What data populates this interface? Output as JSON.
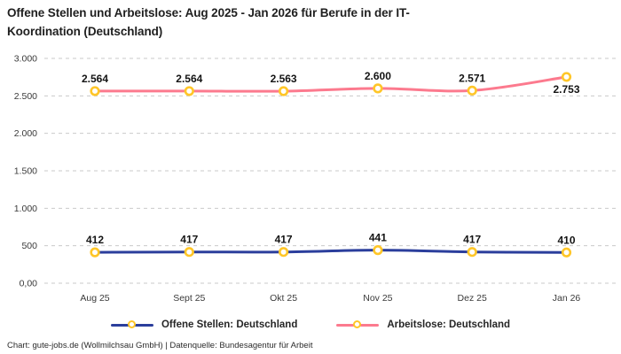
{
  "title": {
    "line1": "Offene Stellen und Arbeitslose: Aug 2025 - Jan 2026 für Berufe in der IT-",
    "line2": "Koordination (Deutschland)",
    "full": "Offene Stellen und Arbeitslose: Aug 2025 - Jan 2026 für Berufe in der IT-Koordination (Deutschland)"
  },
  "footer": "Chart: gute-jobs.de (Wollmilchsau GmbH) | Datenquelle: Bundesagentur für Arbeit",
  "legend": [
    {
      "label": "Offene Stellen: Deutschland",
      "color": "#2b3e9c"
    },
    {
      "label": "Arbeitslose: Deutschland",
      "color": "#fc7a8e"
    }
  ],
  "colors": {
    "marker_ring": "#ffc628",
    "marker_fill": "#ffffff",
    "gridline": "#c9c9c9",
    "tick_text": "#3a3a3a",
    "value_label": "#141414"
  },
  "chart_data": {
    "type": "line",
    "title": "Offene Stellen und Arbeitslose: Aug 2025 - Jan 2026 für Berufe in der IT-Koordination (Deutschland)",
    "categories": [
      "Aug 25",
      "Sept 25",
      "Okt 25",
      "Nov 25",
      "Dez 25",
      "Jan 26"
    ],
    "series": [
      {
        "name": "Offene Stellen: Deutschland",
        "color": "#2b3e9c",
        "values": [
          412,
          417,
          417,
          441,
          417,
          410
        ],
        "labels": [
          "412",
          "417",
          "417",
          "441",
          "417",
          "410"
        ],
        "label_placement": [
          "above",
          "above",
          "above",
          "above",
          "above",
          "above"
        ]
      },
      {
        "name": "Arbeitslose: Deutschland",
        "color": "#fc7a8e",
        "values": [
          2564,
          2564,
          2563,
          2600,
          2571,
          2753
        ],
        "labels": [
          "2.564",
          "2.564",
          "2.563",
          "2.600",
          "2.571",
          "2.753"
        ],
        "label_placement": [
          "above",
          "above",
          "above",
          "above",
          "above",
          "below"
        ]
      }
    ],
    "y_ticks": [
      {
        "value": 3000,
        "label": "3.000"
      },
      {
        "value": 2500,
        "label": "2.500"
      },
      {
        "value": 2000,
        "label": "2.000"
      },
      {
        "value": 1500,
        "label": "1.500"
      },
      {
        "value": 1000,
        "label": "1.000"
      },
      {
        "value": 500,
        "label": "500"
      },
      {
        "value": 0,
        "label": "0,00"
      }
    ],
    "ylim": [
      0,
      3000
    ],
    "xlabel": "",
    "ylabel": "",
    "grid": "dashed-horizontal",
    "legend_position": "bottom"
  }
}
